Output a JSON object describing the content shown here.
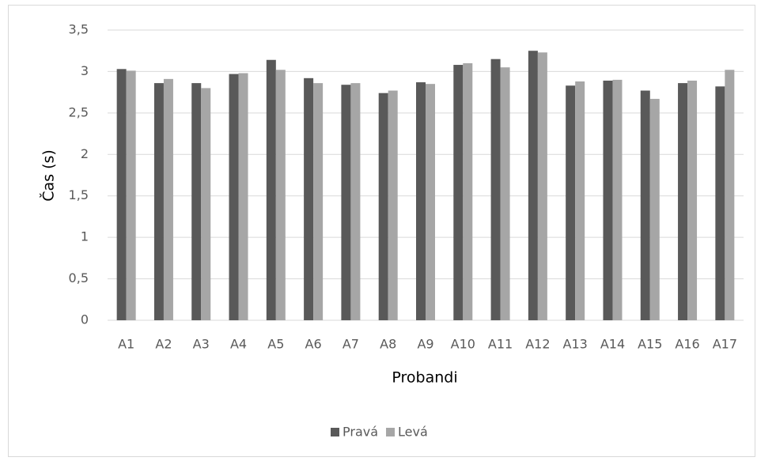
{
  "chart_data": {
    "type": "bar",
    "y_label": "Čas (s)",
    "x_label": "Probandi",
    "categories": [
      "A1",
      "A2",
      "A3",
      "A4",
      "A5",
      "A6",
      "A7",
      "A8",
      "A9",
      "A10",
      "A11",
      "A12",
      "A13",
      "A14",
      "A15",
      "A16",
      "A17"
    ],
    "series": [
      {
        "name": "Pravá",
        "color": "#595959",
        "values": [
          3.03,
          2.86,
          2.86,
          2.97,
          3.14,
          2.92,
          2.84,
          2.74,
          2.87,
          3.08,
          3.15,
          3.25,
          2.83,
          2.89,
          2.77,
          2.86,
          2.82
        ]
      },
      {
        "name": "Levá",
        "color": "#a6a6a6",
        "values": [
          3.01,
          2.91,
          2.8,
          2.98,
          3.02,
          2.86,
          2.86,
          2.77,
          2.85,
          3.1,
          3.05,
          3.23,
          2.88,
          2.9,
          2.67,
          2.89,
          3.02
        ]
      }
    ],
    "ylim": [
      0,
      3.5
    ],
    "yticks": [
      0,
      {
        "value": 0.5,
        "label": "0,5"
      },
      1,
      {
        "value": 1.5,
        "label": "1,5"
      },
      2,
      {
        "value": 2.5,
        "label": "2,5"
      },
      3,
      {
        "value": 3.5,
        "label": "3,5"
      }
    ],
    "grid": true,
    "legend": "bottom"
  }
}
